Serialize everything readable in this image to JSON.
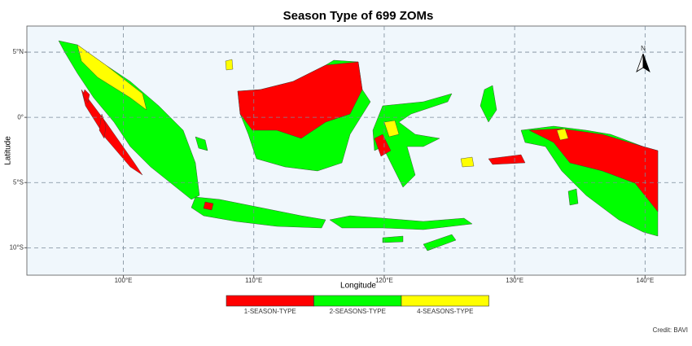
{
  "title": "Season Type of 699 ZOMs",
  "map": {
    "xlabel": "Longitude",
    "ylabel": "Latitude",
    "xlim": [
      92.6,
      143.1
    ],
    "ylim": [
      -12.1,
      7
    ],
    "xticks": [
      {
        "value": 100,
        "label": "100°E"
      },
      {
        "value": 110,
        "label": "110°E"
      },
      {
        "value": 120,
        "label": "120°E"
      },
      {
        "value": 130,
        "label": "130°E"
      },
      {
        "value": 140,
        "label": "140°E"
      }
    ],
    "yticks": [
      {
        "value": 5,
        "label": "5°N"
      },
      {
        "value": 0,
        "label": "0°"
      },
      {
        "value": -5,
        "label": "5°S"
      },
      {
        "value": -10,
        "label": "10°S"
      }
    ],
    "grid": true,
    "north_label": "N"
  },
  "legend": {
    "items": [
      {
        "name": "1-SEASON-TYPE",
        "color": "#ff0000"
      },
      {
        "name": "2-SEASONS-TYPE",
        "color": "#00ff00"
      },
      {
        "name": "4-SEASONS-TYPE",
        "color": "#ffff00"
      }
    ]
  },
  "credit": "Credit: BAVI"
}
